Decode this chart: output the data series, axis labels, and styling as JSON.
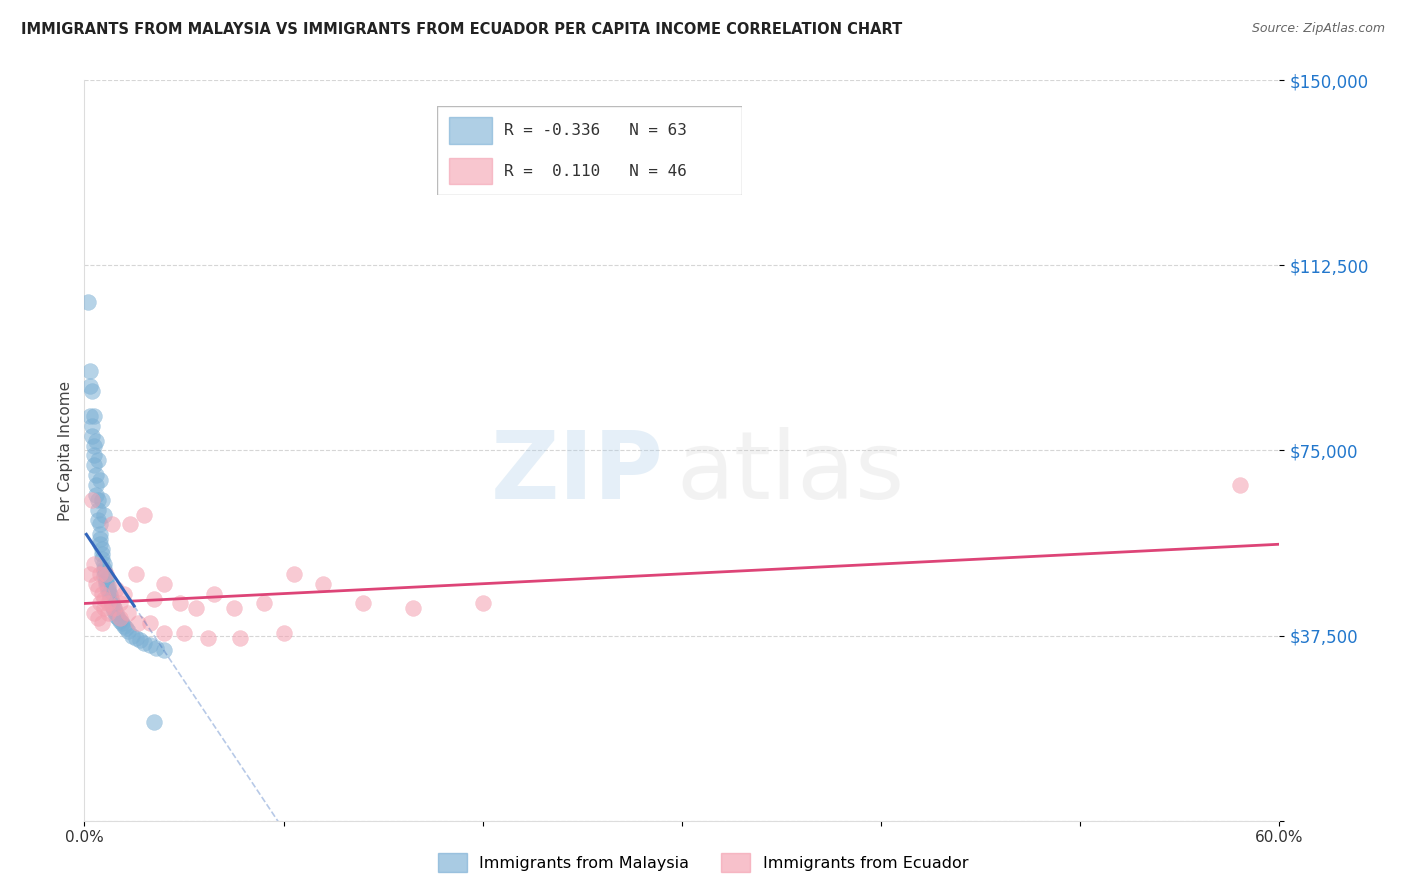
{
  "title": "IMMIGRANTS FROM MALAYSIA VS IMMIGRANTS FROM ECUADOR PER CAPITA INCOME CORRELATION CHART",
  "source": "Source: ZipAtlas.com",
  "ylabel": "Per Capita Income",
  "xlim": [
    0.0,
    0.6
  ],
  "ylim": [
    0,
    150000
  ],
  "yticks": [
    0,
    37500,
    75000,
    112500,
    150000
  ],
  "ytick_labels": [
    "",
    "$37,500",
    "$75,000",
    "$112,500",
    "$150,000"
  ],
  "xticks": [
    0.0,
    0.1,
    0.2,
    0.3,
    0.4,
    0.5,
    0.6
  ],
  "xtick_labels": [
    "0.0%",
    "",
    "",
    "",
    "",
    "",
    "60.0%"
  ],
  "malaysia_color": "#7BAFD4",
  "ecuador_color": "#F4A0B0",
  "trendline_malaysia_color": "#3366BB",
  "trendline_ecuador_color": "#DD4477",
  "background_color": "#FFFFFF",
  "axis_label_color": "#2277CC",
  "malaysia_x": [
    0.002,
    0.003,
    0.003,
    0.004,
    0.004,
    0.005,
    0.005,
    0.005,
    0.006,
    0.006,
    0.006,
    0.007,
    0.007,
    0.007,
    0.008,
    0.008,
    0.008,
    0.008,
    0.009,
    0.009,
    0.009,
    0.01,
    0.01,
    0.01,
    0.01,
    0.011,
    0.011,
    0.011,
    0.012,
    0.012,
    0.012,
    0.013,
    0.013,
    0.013,
    0.014,
    0.014,
    0.014,
    0.015,
    0.015,
    0.016,
    0.016,
    0.017,
    0.018,
    0.019,
    0.02,
    0.021,
    0.022,
    0.024,
    0.026,
    0.028,
    0.03,
    0.033,
    0.036,
    0.04,
    0.003,
    0.004,
    0.005,
    0.006,
    0.007,
    0.008,
    0.009,
    0.01,
    0.035
  ],
  "malaysia_y": [
    105000,
    88000,
    82000,
    80000,
    78000,
    76000,
    74000,
    72000,
    70000,
    68000,
    66000,
    65000,
    63000,
    61000,
    60000,
    58000,
    57000,
    56000,
    55000,
    54000,
    53000,
    52000,
    51000,
    50500,
    49500,
    49000,
    48500,
    48000,
    47500,
    47000,
    46500,
    46000,
    45500,
    45000,
    44500,
    44000,
    43500,
    43000,
    42500,
    42000,
    41500,
    41000,
    40500,
    40000,
    39500,
    39000,
    38500,
    37500,
    37000,
    36500,
    36000,
    35500,
    35000,
    34500,
    91000,
    87000,
    82000,
    77000,
    73000,
    69000,
    65000,
    62000,
    20000
  ],
  "ecuador_x": [
    0.003,
    0.004,
    0.005,
    0.006,
    0.007,
    0.008,
    0.009,
    0.01,
    0.011,
    0.012,
    0.014,
    0.016,
    0.018,
    0.02,
    0.023,
    0.026,
    0.03,
    0.035,
    0.04,
    0.048,
    0.056,
    0.065,
    0.075,
    0.09,
    0.105,
    0.12,
    0.14,
    0.165,
    0.2,
    0.008,
    0.01,
    0.012,
    0.015,
    0.018,
    0.022,
    0.027,
    0.033,
    0.04,
    0.05,
    0.062,
    0.078,
    0.1,
    0.58,
    0.005,
    0.007,
    0.009
  ],
  "ecuador_y": [
    50000,
    65000,
    52000,
    48000,
    47000,
    50000,
    46000,
    45000,
    50000,
    44000,
    60000,
    47000,
    44000,
    46000,
    60000,
    50000,
    62000,
    45000,
    48000,
    44000,
    43000,
    46000,
    43000,
    44000,
    50000,
    48000,
    44000,
    43000,
    44000,
    44000,
    43000,
    42000,
    43000,
    41000,
    42000,
    40000,
    40000,
    38000,
    38000,
    37000,
    37000,
    38000,
    68000,
    42000,
    41000,
    40000
  ],
  "malaysia_trendline_x0": 0.001,
  "malaysia_trendline_x1": 0.025,
  "malaysia_trendline_xdash1": 0.025,
  "malaysia_trendline_xdash2": 0.19,
  "malaysia_trendline_y0": 58000,
  "malaysia_trendline_y1": 43500,
  "malaysia_trendline_ydash1": 43500,
  "malaysia_trendline_ydash2": -42000,
  "ecuador_trendline_x0": 0.0,
  "ecuador_trendline_x1": 0.6,
  "ecuador_trendline_y0": 44000,
  "ecuador_trendline_y1": 56000
}
